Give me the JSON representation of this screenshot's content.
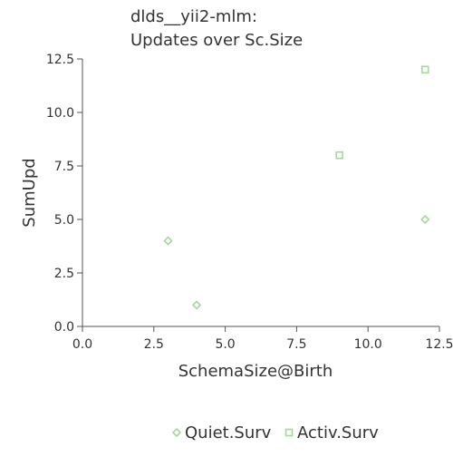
{
  "chart_data": {
    "type": "scatter",
    "title_lines": [
      "dlds__yii2-mlm:",
      "Updates over Sc.Size"
    ],
    "xlabel": "SchemaSize@Birth",
    "ylabel": "SumUpd",
    "xlim": [
      0,
      12.5
    ],
    "ylim": [
      0,
      12.5
    ],
    "x_ticks": [
      "0.0",
      "2.5",
      "5.0",
      "7.5",
      "10.0",
      "12.5"
    ],
    "y_ticks": [
      "0.0",
      "2.5",
      "5.0",
      "7.5",
      "10.0",
      "12.5"
    ],
    "grid": false,
    "legend_position": "bottom",
    "series": [
      {
        "name": "Quiet.Surv",
        "marker": "diamond",
        "color": "#a6d79b",
        "points": [
          [
            3,
            4
          ],
          [
            4,
            1
          ],
          [
            12,
            5
          ]
        ]
      },
      {
        "name": "Activ.Surv",
        "marker": "square",
        "color": "#a6d79b",
        "points": [
          [
            9,
            8
          ],
          [
            12,
            12
          ]
        ]
      }
    ]
  }
}
